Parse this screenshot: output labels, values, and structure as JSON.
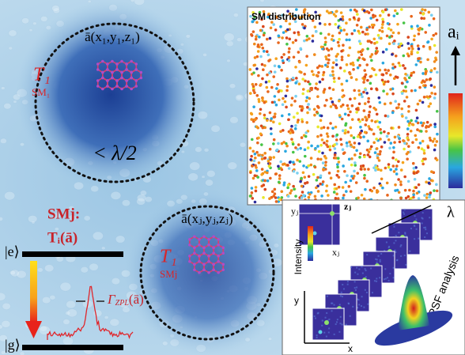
{
  "figure": {
    "top_molecule": {
      "position": "ā(x₁,y₁,z₁)",
      "state": "T₁",
      "label": "SM₁",
      "distance": "< λ/2"
    },
    "bottom_molecule": {
      "position": "ā(xⱼ,yⱼ,zⱼ)",
      "state": "T₁",
      "label": "SMj"
    },
    "level_diagram": {
      "title": "SMj:",
      "state": "Tᵢ(ā)",
      "excited": "|e⟩",
      "ground": "|g⟩",
      "linewidth_symbol": "Γ",
      "linewidth_subscript": "ZPL",
      "linewidth_argument": "(ā)"
    },
    "distribution_panel": {
      "title": "SM distribution",
      "colorbar_label": "aᵢ"
    },
    "psf_panel": {
      "y_label": "yⱼ",
      "z_label": "zⱼ",
      "x_label": "xⱼ",
      "intensity": "Intensity",
      "axis_y": "y",
      "axis_x": "x",
      "wavelength": "λ",
      "analysis": "PSF analysis"
    }
  }
}
